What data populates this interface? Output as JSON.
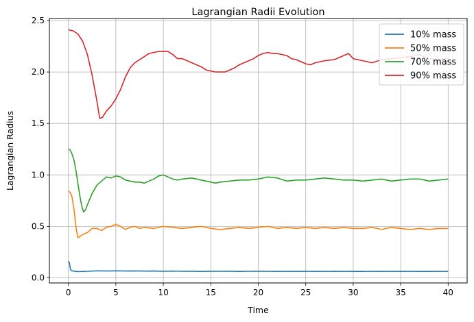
{
  "chart_data": {
    "type": "line",
    "title": "Lagrangian Radii Evolution",
    "xlabel": "Time",
    "ylabel": "Lagrangian Radius",
    "xlim": [
      -2,
      42
    ],
    "ylim": [
      -0.05,
      2.52
    ],
    "xticks": [
      0,
      5,
      10,
      15,
      20,
      25,
      30,
      35,
      40
    ],
    "yticks": [
      0.0,
      0.5,
      1.0,
      1.5,
      2.0,
      2.5
    ],
    "ytick_labels": [
      "0.0",
      "0.5",
      "1.0",
      "1.5",
      "2.0",
      "2.5"
    ],
    "grid": true,
    "legend_position": "top-right",
    "series": [
      {
        "name": "10% mass",
        "color": "#1f77b4",
        "x": [
          0,
          0.1,
          0.2,
          0.3,
          0.5,
          0.8,
          1,
          1.5,
          2,
          3,
          4,
          5,
          6,
          7,
          8,
          9,
          10,
          11,
          12,
          13,
          14,
          15,
          16,
          17,
          18,
          19,
          20,
          21,
          22,
          23,
          24,
          25,
          26,
          27,
          28,
          29,
          30,
          31,
          32,
          33,
          34,
          35,
          36,
          37,
          38,
          39,
          40
        ],
        "y": [
          0.16,
          0.15,
          0.09,
          0.07,
          0.065,
          0.062,
          0.06,
          0.062,
          0.063,
          0.068,
          0.066,
          0.068,
          0.066,
          0.067,
          0.065,
          0.066,
          0.064,
          0.065,
          0.063,
          0.064,
          0.062,
          0.064,
          0.063,
          0.064,
          0.062,
          0.063,
          0.064,
          0.063,
          0.062,
          0.063,
          0.062,
          0.063,
          0.062,
          0.063,
          0.062,
          0.063,
          0.062,
          0.062,
          0.063,
          0.062,
          0.063,
          0.062,
          0.063,
          0.062,
          0.062,
          0.063,
          0.062
        ]
      },
      {
        "name": "50% mass",
        "color": "#ff7f0e",
        "x": [
          0,
          0.2,
          0.4,
          0.6,
          0.8,
          1.0,
          1.2,
          1.5,
          2,
          2.5,
          3,
          3.5,
          4,
          4.5,
          5,
          5.5,
          6,
          6.5,
          7,
          7.5,
          8,
          9,
          10,
          11,
          12,
          13,
          14,
          15,
          16,
          17,
          18,
          19,
          20,
          21,
          22,
          23,
          24,
          25,
          26,
          27,
          28,
          29,
          30,
          31,
          32,
          33,
          34,
          35,
          36,
          37,
          38,
          39,
          40
        ],
        "y": [
          0.84,
          0.83,
          0.78,
          0.66,
          0.49,
          0.39,
          0.4,
          0.42,
          0.44,
          0.48,
          0.48,
          0.46,
          0.49,
          0.5,
          0.52,
          0.5,
          0.47,
          0.49,
          0.5,
          0.48,
          0.49,
          0.48,
          0.5,
          0.49,
          0.48,
          0.49,
          0.5,
          0.48,
          0.47,
          0.48,
          0.49,
          0.48,
          0.49,
          0.5,
          0.48,
          0.49,
          0.48,
          0.49,
          0.48,
          0.49,
          0.48,
          0.49,
          0.48,
          0.48,
          0.49,
          0.47,
          0.49,
          0.48,
          0.47,
          0.48,
          0.47,
          0.48,
          0.48
        ]
      },
      {
        "name": "70% mass",
        "color": "#2ca02c",
        "x": [
          0,
          0.2,
          0.4,
          0.6,
          0.8,
          1.0,
          1.2,
          1.4,
          1.6,
          1.8,
          2,
          2.5,
          3,
          3.5,
          4,
          4.5,
          5,
          5.5,
          6,
          6.5,
          7,
          7.5,
          8,
          8.5,
          9,
          9.5,
          10,
          10.5,
          11,
          11.5,
          12,
          13,
          14,
          15,
          15.5,
          16,
          17,
          18,
          19,
          20,
          21,
          22,
          23,
          24,
          25,
          26,
          27,
          28,
          29,
          30,
          31,
          32,
          33,
          34,
          35,
          36,
          37,
          38,
          39,
          40
        ],
        "y": [
          1.25,
          1.24,
          1.2,
          1.14,
          1.04,
          0.92,
          0.8,
          0.7,
          0.64,
          0.66,
          0.71,
          0.82,
          0.9,
          0.94,
          0.98,
          0.97,
          0.99,
          0.98,
          0.95,
          0.94,
          0.93,
          0.93,
          0.92,
          0.94,
          0.96,
          0.99,
          1.0,
          0.98,
          0.96,
          0.95,
          0.96,
          0.97,
          0.95,
          0.93,
          0.92,
          0.93,
          0.94,
          0.95,
          0.95,
          0.96,
          0.98,
          0.97,
          0.94,
          0.95,
          0.95,
          0.96,
          0.97,
          0.96,
          0.95,
          0.95,
          0.94,
          0.95,
          0.96,
          0.94,
          0.95,
          0.96,
          0.96,
          0.94,
          0.95,
          0.96
        ]
      },
      {
        "name": "90% mass",
        "color": "#d62728",
        "x": [
          0,
          0.5,
          1,
          1.5,
          2,
          2.5,
          3,
          3.3,
          3.6,
          4,
          4.5,
          5,
          5.5,
          6,
          6.5,
          7,
          7.5,
          8,
          8.5,
          9,
          9.5,
          10,
          10.5,
          11,
          11.5,
          12,
          12.5,
          13,
          13.5,
          14,
          14.5,
          15,
          15.5,
          16,
          16.5,
          17,
          17.5,
          18,
          18.5,
          19,
          19.5,
          20,
          20.5,
          21,
          21.5,
          22,
          22.5,
          23,
          23.5,
          24,
          24.5,
          25,
          25.5,
          26,
          27,
          28,
          28.5,
          29,
          29.5,
          30,
          31,
          32,
          33,
          34,
          35,
          36,
          37,
          38,
          39,
          40
        ],
        "y": [
          2.41,
          2.4,
          2.37,
          2.3,
          2.17,
          1.97,
          1.72,
          1.55,
          1.56,
          1.62,
          1.67,
          1.74,
          1.83,
          1.95,
          2.04,
          2.09,
          2.12,
          2.15,
          2.18,
          2.19,
          2.2,
          2.2,
          2.2,
          2.17,
          2.13,
          2.13,
          2.11,
          2.09,
          2.07,
          2.05,
          2.02,
          2.01,
          2.0,
          2.0,
          2.0,
          2.02,
          2.04,
          2.07,
          2.09,
          2.11,
          2.13,
          2.16,
          2.18,
          2.19,
          2.18,
          2.18,
          2.17,
          2.16,
          2.13,
          2.12,
          2.1,
          2.08,
          2.07,
          2.09,
          2.11,
          2.12,
          2.14,
          2.16,
          2.18,
          2.13,
          2.11,
          2.09,
          2.12,
          2.13,
          2.14,
          2.15,
          2.17,
          2.13,
          2.12,
          2.13
        ]
      }
    ]
  }
}
